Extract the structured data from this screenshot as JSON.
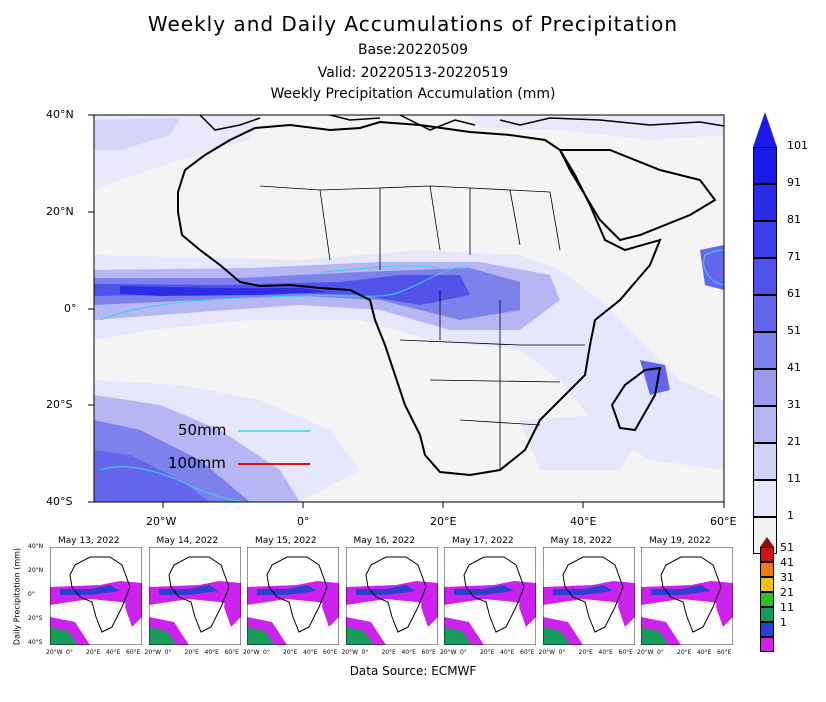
{
  "header": {
    "title": "Weekly and Daily Accumulations of Precipitation",
    "base": "Base:20220509",
    "valid": "Valid: 20220513-20220519",
    "subtitle": "Weekly Precipitation Accumulation (mm)"
  },
  "map": {
    "lat_labels": [
      "40°N",
      "20°N",
      "0°",
      "20°S",
      "40°S"
    ],
    "lon_labels": [
      "20°W",
      "0°",
      "20°E",
      "40°E",
      "60°E"
    ],
    "legend": [
      {
        "label": "50mm",
        "color": "#33d6e6"
      },
      {
        "label": "100mm",
        "color": "#e01010"
      }
    ]
  },
  "colorbar_main": {
    "labels": [
      "101",
      "91",
      "81",
      "71",
      "61",
      "51",
      "41",
      "31",
      "21",
      "11",
      "1"
    ],
    "colors": [
      "#1a1ae6",
      "#2b2be8",
      "#3d40e9",
      "#5052ea",
      "#6366ea",
      "#7e80ec",
      "#9a9bef",
      "#b5b6f3",
      "#d0d1f7",
      "#e7e7fb",
      "#f2f2f2"
    ],
    "top_color": "#1a1ae6"
  },
  "daily": {
    "ylabel": "Daily Precipitation (mm)",
    "dates": [
      "May 13, 2022",
      "May 14, 2022",
      "May 15, 2022",
      "May 16, 2022",
      "May 17, 2022",
      "May 18, 2022",
      "May 19, 2022"
    ],
    "lat_labels": [
      "40°N",
      "20°N",
      "0°",
      "20°S",
      "40°S"
    ],
    "lon_labels": [
      "20°W",
      "0°",
      "20°E",
      "40°E",
      "60°E"
    ]
  },
  "colorbar_daily": {
    "labels": [
      "51",
      "41",
      "31",
      "21",
      "11",
      "1"
    ],
    "colors": [
      "#d41414",
      "#f07a10",
      "#f0c010",
      "#28c028",
      "#1a9a5a",
      "#2a40d0",
      "#cc22ee"
    ],
    "top_color": "#8a1010"
  },
  "footer": {
    "source": "Data Source: ECMWF"
  }
}
